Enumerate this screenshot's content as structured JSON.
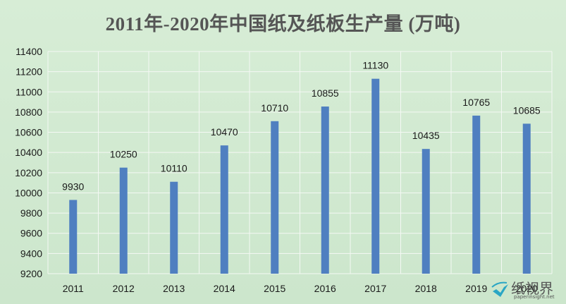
{
  "chart_data": {
    "type": "bar",
    "title": "2011年-2020年中国纸及纸板生产量 (万吨)",
    "categories": [
      "2011",
      "2012",
      "2013",
      "2014",
      "2015",
      "2016",
      "2017",
      "2018",
      "2019",
      "2020"
    ],
    "values": [
      9930,
      10250,
      10110,
      10470,
      10710,
      10855,
      11130,
      10435,
      10765,
      10685
    ],
    "data_labels": [
      "9930",
      "10250",
      "10110",
      "10470",
      "10710",
      "10855",
      "11130",
      "10435",
      "10765",
      "10685"
    ],
    "ylim": [
      9200,
      11400
    ],
    "yticks": [
      9200,
      9400,
      9600,
      9800,
      10000,
      10200,
      10400,
      10600,
      10800,
      11000,
      11200,
      11400
    ],
    "grid": true,
    "bar_color": "#4f7fc0",
    "grid_color": "#f4f8f4"
  },
  "watermark": {
    "brand": "纸视界",
    "url": "paperinsight.net"
  }
}
